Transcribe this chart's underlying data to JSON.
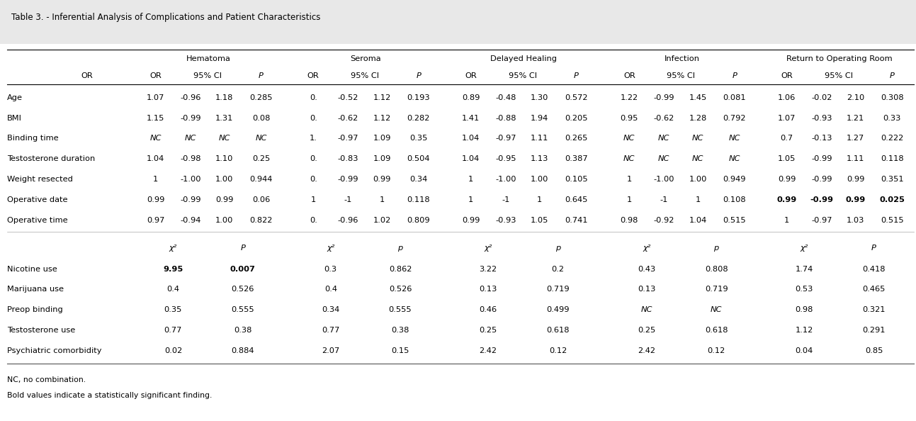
{
  "title": "Table 3. - Inferential Analysis of Complications and Patient Characteristics",
  "background_color": "#e8e8e8",
  "table_bg": "#ffffff",
  "group_headers": [
    "Hematoma",
    "Seroma",
    "Delayed Healing",
    "Infection",
    "Return to Operating Room"
  ],
  "continuous_rows": [
    {
      "label": "Age",
      "hema_or": "1.07",
      "hema_ci1": "-0.96",
      "hema_ci2": "1.18",
      "hema_p": "0.285",
      "ser_or": "0.",
      "ser_ci1": "-0.52",
      "ser_ci2": "1.12",
      "ser_p": "0.193",
      "dh_or": "0.89",
      "dh_ci1": "-0.48",
      "dh_ci2": "1.30",
      "dh_p": "0.572",
      "inf_or": "1.22",
      "inf_ci1": "-0.99",
      "inf_ci2": "1.45",
      "inf_p": "0.081",
      "rr_or": "1.06",
      "rr_ci1": "-0.02",
      "rr_ci2": "2.10",
      "rr_p": "0.308"
    },
    {
      "label": "BMI",
      "hema_or": "1.15",
      "hema_ci1": "-0.99",
      "hema_ci2": "1.31",
      "hema_p": "0.08",
      "ser_or": "0.",
      "ser_ci1": "-0.62",
      "ser_ci2": "1.12",
      "ser_p": "0.282",
      "dh_or": "1.41",
      "dh_ci1": "-0.88",
      "dh_ci2": "1.94",
      "dh_p": "0.205",
      "inf_or": "0.95",
      "inf_ci1": "-0.62",
      "inf_ci2": "1.28",
      "inf_p": "0.792",
      "rr_or": "1.07",
      "rr_ci1": "-0.93",
      "rr_ci2": "1.21",
      "rr_p": "0.33"
    },
    {
      "label": "Binding time",
      "hema_or": "NC",
      "hema_ci1": "NC",
      "hema_ci2": "NC",
      "hema_p": "NC",
      "ser_or": "1.",
      "ser_ci1": "-0.97",
      "ser_ci2": "1.09",
      "ser_p": "0.35",
      "dh_or": "1.04",
      "dh_ci1": "-0.97",
      "dh_ci2": "1.11",
      "dh_p": "0.265",
      "inf_or": "NC",
      "inf_ci1": "NC",
      "inf_ci2": "NC",
      "inf_p": "NC",
      "rr_or": "0.7",
      "rr_ci1": "-0.13",
      "rr_ci2": "1.27",
      "rr_p": "0.222"
    },
    {
      "label": "Testosterone duration",
      "hema_or": "1.04",
      "hema_ci1": "-0.98",
      "hema_ci2": "1.10",
      "hema_p": "0.25",
      "ser_or": "0.",
      "ser_ci1": "-0.83",
      "ser_ci2": "1.09",
      "ser_p": "0.504",
      "dh_or": "1.04",
      "dh_ci1": "-0.95",
      "dh_ci2": "1.13",
      "dh_p": "0.387",
      "inf_or": "NC",
      "inf_ci1": "NC",
      "inf_ci2": "NC",
      "inf_p": "NC",
      "rr_or": "1.05",
      "rr_ci1": "-0.99",
      "rr_ci2": "1.11",
      "rr_p": "0.118"
    },
    {
      "label": "Weight resected",
      "hema_or": "1",
      "hema_ci1": "-1.00",
      "hema_ci2": "1.00",
      "hema_p": "0.944",
      "ser_or": "0.",
      "ser_ci1": "-0.99",
      "ser_ci2": "0.99",
      "ser_p": "0.34",
      "dh_or": "1",
      "dh_ci1": "-1.00",
      "dh_ci2": "1.00",
      "dh_p": "0.105",
      "inf_or": "1",
      "inf_ci1": "-1.00",
      "inf_ci2": "1.00",
      "inf_p": "0.949",
      "rr_or": "0.99",
      "rr_ci1": "-0.99",
      "rr_ci2": "0.99",
      "rr_p": "0.351"
    },
    {
      "label": "Operative date",
      "hema_or": "0.99",
      "hema_ci1": "-0.99",
      "hema_ci2": "0.99",
      "hema_p": "0.06",
      "ser_or": "1",
      "ser_ci1": "-1",
      "ser_ci2": "1",
      "ser_p": "0.118",
      "dh_or": "1",
      "dh_ci1": "-1",
      "dh_ci2": "1",
      "dh_p": "0.645",
      "inf_or": "1",
      "inf_ci1": "-1",
      "inf_ci2": "1",
      "inf_p": "0.108",
      "rr_or": "0.99",
      "rr_ci1": "-0.99",
      "rr_ci2": "0.99",
      "rr_p": "0.025",
      "bold_rr": true
    },
    {
      "label": "Operative time",
      "hema_or": "0.97",
      "hema_ci1": "-0.94",
      "hema_ci2": "1.00",
      "hema_p": "0.822",
      "ser_or": "0.",
      "ser_ci1": "-0.96",
      "ser_ci2": "1.02",
      "ser_p": "0.809",
      "dh_or": "0.99",
      "dh_ci1": "-0.93",
      "dh_ci2": "1.05",
      "dh_p": "0.741",
      "inf_or": "0.98",
      "inf_ci1": "-0.92",
      "inf_ci2": "1.04",
      "inf_p": "0.515",
      "rr_or": "1",
      "rr_ci1": "-0.97",
      "rr_ci2": "1.03",
      "rr_p": "0.515"
    }
  ],
  "categorical_rows": [
    {
      "label": "Nicotine use",
      "hema_chi2": "9.95",
      "hema_p": "0.007",
      "ser_chi2": "0.3",
      "ser_p": "0.862",
      "dh_chi2": "3.22",
      "dh_p": "0.2",
      "inf_chi2": "0.43",
      "inf_p": "0.808",
      "rr_chi2": "1.74",
      "rr_p": "0.418",
      "bold_hema": true
    },
    {
      "label": "Marijuana use",
      "hema_chi2": "0.4",
      "hema_p": "0.526",
      "ser_chi2": "0.4",
      "ser_p": "0.526",
      "dh_chi2": "0.13",
      "dh_p": "0.719",
      "inf_chi2": "0.13",
      "inf_p": "0.719",
      "rr_chi2": "0.53",
      "rr_p": "0.465"
    },
    {
      "label": "Preop binding",
      "hema_chi2": "0.35",
      "hema_p": "0.555",
      "ser_chi2": "0.34",
      "ser_p": "0.555",
      "dh_chi2": "0.46",
      "dh_p": "0.499",
      "inf_chi2": "NC",
      "inf_p": "NC",
      "rr_chi2": "0.98",
      "rr_p": "0.321"
    },
    {
      "label": "Testosterone use",
      "hema_chi2": "0.77",
      "hema_p": "0.38",
      "ser_chi2": "0.77",
      "ser_p": "0.38",
      "dh_chi2": "0.25",
      "dh_p": "0.618",
      "inf_chi2": "0.25",
      "inf_p": "0.618",
      "rr_chi2": "1.12",
      "rr_p": "0.291"
    },
    {
      "label": "Psychiatric comorbidity",
      "hema_chi2": "0.02",
      "hema_p": "0.884",
      "ser_chi2": "2.07",
      "ser_p": "0.15",
      "dh_chi2": "2.42",
      "dh_p": "0.12",
      "inf_chi2": "2.42",
      "inf_p": "0.12",
      "rr_chi2": "0.04",
      "rr_p": "0.85"
    }
  ],
  "footer_lines": [
    "NC, no combination.",
    "Bold values indicate a statistically significant finding."
  ]
}
